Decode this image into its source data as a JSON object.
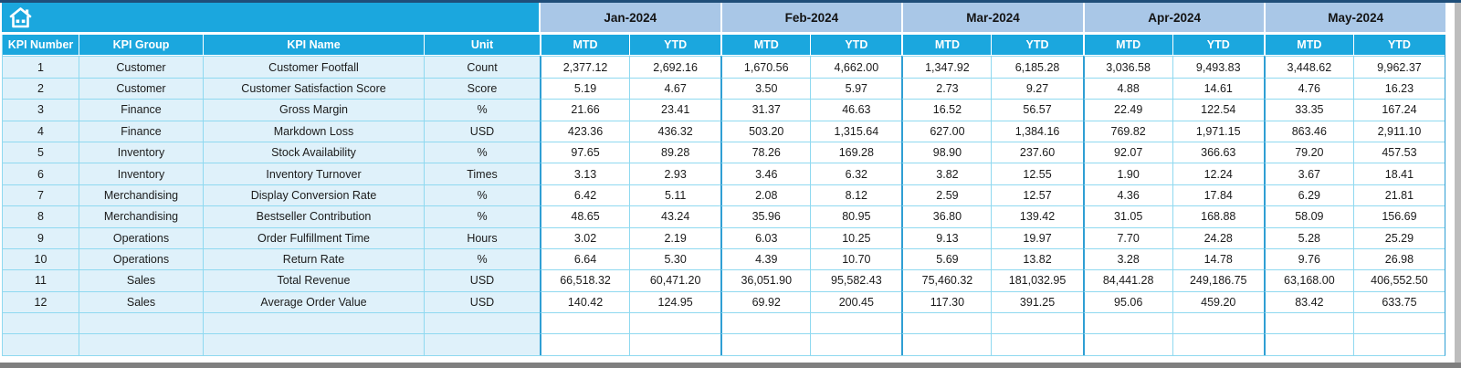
{
  "theme": {
    "header_cyan": "#1BA7DE",
    "month_band_blue": "#A9C7E7",
    "left_cell_fill": "#DFF1FA",
    "grid_line": "#8FD9F0",
    "pair_border": "#2F9FD4",
    "top_border": "#1F4E79",
    "bottom_bar": "#7F7F7F",
    "side_strip": "#BDBDBD"
  },
  "table": {
    "left_headers": [
      "KPI Number",
      "KPI Group",
      "KPI Name",
      "Unit"
    ],
    "months": [
      "Jan-2024",
      "Feb-2024",
      "Mar-2024",
      "Apr-2024",
      "May-2024"
    ],
    "sub_headers": [
      "MTD",
      "YTD"
    ],
    "rows": [
      {
        "number": "1",
        "group": "Customer",
        "name": "Customer Footfall",
        "unit": "Count",
        "values": [
          "2,377.12",
          "2,692.16",
          "1,670.56",
          "4,662.00",
          "1,347.92",
          "6,185.28",
          "3,036.58",
          "9,493.83",
          "3,448.62",
          "9,962.37"
        ]
      },
      {
        "number": "2",
        "group": "Customer",
        "name": "Customer Satisfaction Score",
        "unit": "Score",
        "values": [
          "5.19",
          "4.67",
          "3.50",
          "5.97",
          "2.73",
          "9.27",
          "4.88",
          "14.61",
          "4.76",
          "16.23"
        ]
      },
      {
        "number": "3",
        "group": "Finance",
        "name": "Gross Margin",
        "unit": "%",
        "values": [
          "21.66",
          "23.41",
          "31.37",
          "46.63",
          "16.52",
          "56.57",
          "22.49",
          "122.54",
          "33.35",
          "167.24"
        ]
      },
      {
        "number": "4",
        "group": "Finance",
        "name": "Markdown Loss",
        "unit": "USD",
        "values": [
          "423.36",
          "436.32",
          "503.20",
          "1,315.64",
          "627.00",
          "1,384.16",
          "769.82",
          "1,971.15",
          "863.46",
          "2,911.10"
        ]
      },
      {
        "number": "5",
        "group": "Inventory",
        "name": "Stock Availability",
        "unit": "%",
        "values": [
          "97.65",
          "89.28",
          "78.26",
          "169.28",
          "98.90",
          "237.60",
          "92.07",
          "366.63",
          "79.20",
          "457.53"
        ]
      },
      {
        "number": "6",
        "group": "Inventory",
        "name": "Inventory Turnover",
        "unit": "Times",
        "values": [
          "3.13",
          "2.93",
          "3.46",
          "6.32",
          "3.82",
          "12.55",
          "1.90",
          "12.24",
          "3.67",
          "18.41"
        ]
      },
      {
        "number": "7",
        "group": "Merchandising",
        "name": "Display Conversion Rate",
        "unit": "%",
        "values": [
          "6.42",
          "5.11",
          "2.08",
          "8.12",
          "2.59",
          "12.57",
          "4.36",
          "17.84",
          "6.29",
          "21.81"
        ]
      },
      {
        "number": "8",
        "group": "Merchandising",
        "name": "Bestseller Contribution",
        "unit": "%",
        "values": [
          "48.65",
          "43.24",
          "35.96",
          "80.95",
          "36.80",
          "139.42",
          "31.05",
          "168.88",
          "58.09",
          "156.69"
        ]
      },
      {
        "number": "9",
        "group": "Operations",
        "name": "Order Fulfillment Time",
        "unit": "Hours",
        "values": [
          "3.02",
          "2.19",
          "6.03",
          "10.25",
          "9.13",
          "19.97",
          "7.70",
          "24.28",
          "5.28",
          "25.29"
        ]
      },
      {
        "number": "10",
        "group": "Operations",
        "name": "Return Rate",
        "unit": "%",
        "values": [
          "6.64",
          "5.30",
          "4.39",
          "10.70",
          "5.69",
          "13.82",
          "3.28",
          "14.78",
          "9.76",
          "26.98"
        ]
      },
      {
        "number": "11",
        "group": "Sales",
        "name": "Total Revenue",
        "unit": "USD",
        "values": [
          "66,518.32",
          "60,471.20",
          "36,051.90",
          "95,582.43",
          "75,460.32",
          "181,032.95",
          "84,441.28",
          "249,186.75",
          "63,168.00",
          "406,552.50"
        ]
      },
      {
        "number": "12",
        "group": "Sales",
        "name": "Average Order Value",
        "unit": "USD",
        "values": [
          "140.42",
          "124.95",
          "69.92",
          "200.45",
          "117.30",
          "391.25",
          "95.06",
          "459.20",
          "83.42",
          "633.75"
        ]
      }
    ],
    "empty_row_count": 2
  }
}
